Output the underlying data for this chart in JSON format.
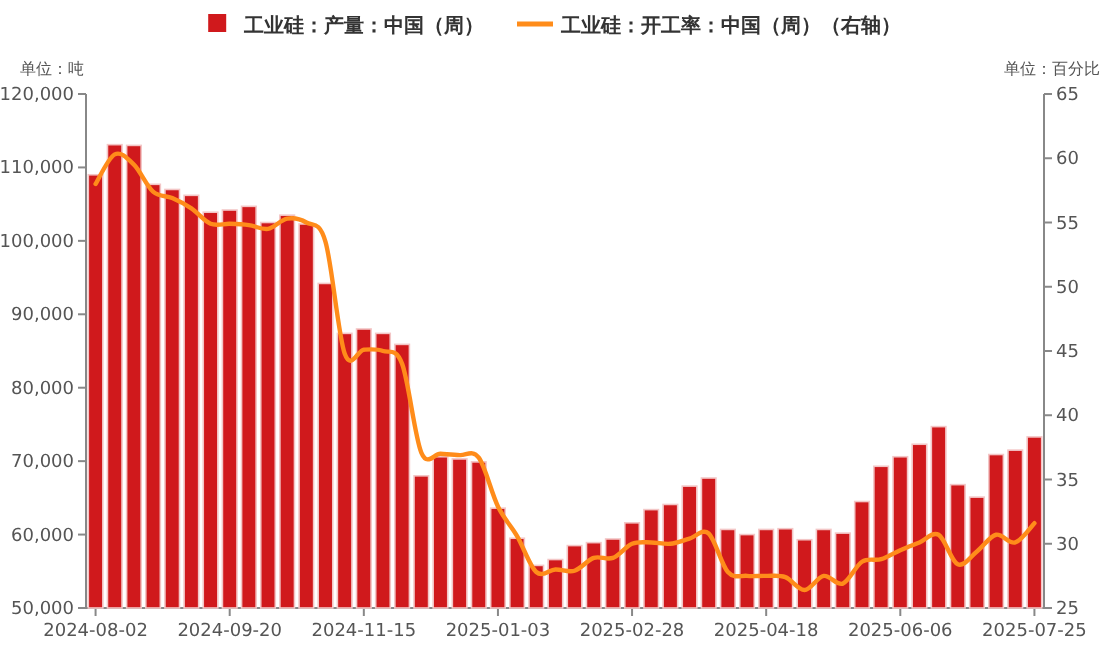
{
  "chart_data": {
    "type": "bar",
    "categories": [
      "2024-08-02",
      null,
      null,
      null,
      null,
      null,
      null,
      "2024-09-20",
      null,
      null,
      null,
      null,
      null,
      null,
      "2024-11-15",
      null,
      null,
      null,
      null,
      null,
      null,
      "2025-01-03",
      null,
      null,
      null,
      null,
      null,
      null,
      "2025-02-28",
      null,
      null,
      null,
      null,
      null,
      null,
      "2025-04-18",
      null,
      null,
      null,
      null,
      null,
      null,
      "2025-06-06",
      null,
      null,
      null,
      null,
      null,
      null,
      "2025-07-25"
    ],
    "series": [
      {
        "name": "工业硅：产量：中国（周）",
        "color": "#d0191c",
        "values": [
          109000,
          113100,
          113000,
          107700,
          107000,
          106200,
          103900,
          104200,
          104700,
          102500,
          103500,
          102300,
          94200,
          87400,
          88000,
          87400,
          85900,
          68000,
          70600,
          70300,
          69900,
          63600,
          59500,
          55800,
          56600,
          58500,
          58900,
          59400,
          61600,
          63400,
          64100,
          66600,
          67700,
          60700,
          60000,
          60700,
          60800,
          59300,
          60700,
          60200,
          64500,
          69300,
          70600,
          72300,
          74700,
          66800,
          65100,
          70900,
          71500,
          73300
        ]
      },
      {
        "name": "工业硅：开工率：中国（周）（右轴）",
        "type": "line",
        "axis": "y2",
        "color": "#ff8c1a",
        "values": [
          58.0,
          60.3,
          59.5,
          57.4,
          56.9,
          56.1,
          54.9,
          54.9,
          54.8,
          54.5,
          55.3,
          55.0,
          53.5,
          44.8,
          45.1,
          45.0,
          44.0,
          37.1,
          37.0,
          36.9,
          36.7,
          32.9,
          30.6,
          27.8,
          28.0,
          27.9,
          28.9,
          28.9,
          30.0,
          30.1,
          30.0,
          30.4,
          30.8,
          27.8,
          27.5,
          27.5,
          27.4,
          26.4,
          27.5,
          26.9,
          28.6,
          28.8,
          29.5,
          30.1,
          30.7,
          28.4,
          29.4,
          30.7,
          30.1,
          31.6
        ]
      }
    ],
    "ylabel": "单位：吨",
    "y2label": "单位：百分比",
    "ylim": [
      50000,
      120000
    ],
    "yticks": [
      {
        "value": 50000,
        "label": "50,000"
      },
      {
        "value": 60000,
        "label": "60,000"
      },
      {
        "value": 70000,
        "label": "70,000"
      },
      {
        "value": 80000,
        "label": "80,000"
      },
      {
        "value": 90000,
        "label": "90,000"
      },
      {
        "value": 100000,
        "label": "100,000"
      },
      {
        "value": 110000,
        "label": "110,000"
      },
      {
        "value": 120000,
        "label": "120,000"
      }
    ],
    "y2lim": [
      25,
      65
    ],
    "y2ticks": [
      25,
      30,
      35,
      40,
      45,
      50,
      55,
      60,
      65
    ],
    "legend": "top"
  }
}
